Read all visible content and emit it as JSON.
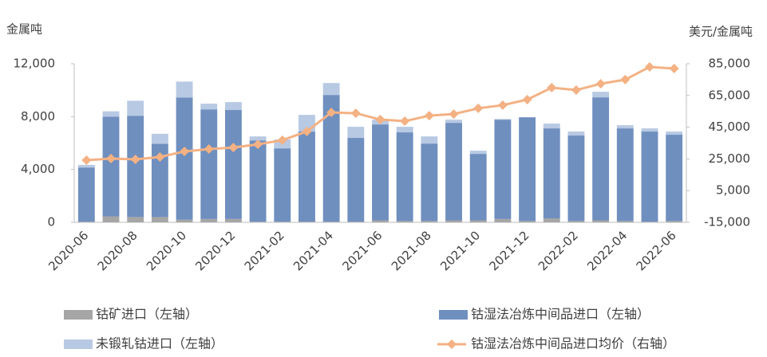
{
  "chart_data": {
    "type": "bar",
    "stacked": true,
    "y_label": "金属吨",
    "y2_label": "美元/金属吨",
    "categories": [
      "2020-06",
      null,
      "2020-08",
      null,
      "2020-10",
      null,
      "2020-12",
      null,
      "2021-02",
      null,
      "2021-04",
      null,
      "2021-06",
      null,
      "2021-08",
      null,
      "2021-10",
      null,
      "2021-12",
      null,
      "2022-02",
      null,
      "2022-04",
      null,
      "2022-06"
    ],
    "ylim": [
      0,
      12000
    ],
    "yticks": [
      0,
      {
        "value": 4000,
        "label": "4,000"
      },
      {
        "value": 8000,
        "label": "8,000"
      },
      {
        "value": 12000,
        "label": "12,000"
      }
    ],
    "y2lim": [
      -15000,
      85000
    ],
    "y2ticks": [
      {
        "value": -15000,
        "label": "-15,000"
      },
      {
        "value": 5000,
        "label": "5,000"
      },
      {
        "value": 25000,
        "label": "25,000"
      },
      {
        "value": 45000,
        "label": "45,000"
      },
      {
        "value": 65000,
        "label": "65,000"
      },
      {
        "value": 85000,
        "label": "85,000"
      }
    ],
    "series": [
      {
        "name": "钴矿进口（左轴）",
        "color": "#a6a6a6",
        "values": [
          50,
          450,
          400,
          400,
          200,
          250,
          250,
          50,
          50,
          50,
          50,
          50,
          150,
          100,
          100,
          150,
          150,
          250,
          100,
          300,
          100,
          150,
          100,
          50,
          100
        ]
      },
      {
        "name": "钴湿法冶炼中间品进口（左轴）",
        "color": "#6f8fbf",
        "values": [
          4100,
          7550,
          7650,
          5550,
          9250,
          8300,
          8250,
          6150,
          5550,
          6820,
          9590,
          6340,
          7260,
          6710,
          5860,
          7380,
          5030,
          7520,
          7850,
          6810,
          6470,
          9310,
          7010,
          6820,
          6530
        ]
      },
      {
        "name": "未锻轧钴进口（左轴）",
        "color": "#b8c9e3",
        "values": [
          200,
          400,
          1150,
          750,
          1200,
          430,
          600,
          300,
          670,
          1260,
          900,
          840,
          360,
          420,
          540,
          240,
          240,
          50,
          0,
          360,
          300,
          420,
          240,
          240,
          240
        ]
      },
      {
        "name": "钴湿法冶炼中间品进口均价（右轴）",
        "color": "#f4b183",
        "type": "line",
        "axis": "y2",
        "values": [
          24200,
          25200,
          24700,
          26200,
          29700,
          31200,
          32200,
          34200,
          36800,
          42300,
          54300,
          53800,
          49800,
          48800,
          52300,
          53300,
          56900,
          58900,
          62400,
          69900,
          68400,
          72400,
          75000,
          83000,
          82000
        ]
      }
    ]
  }
}
